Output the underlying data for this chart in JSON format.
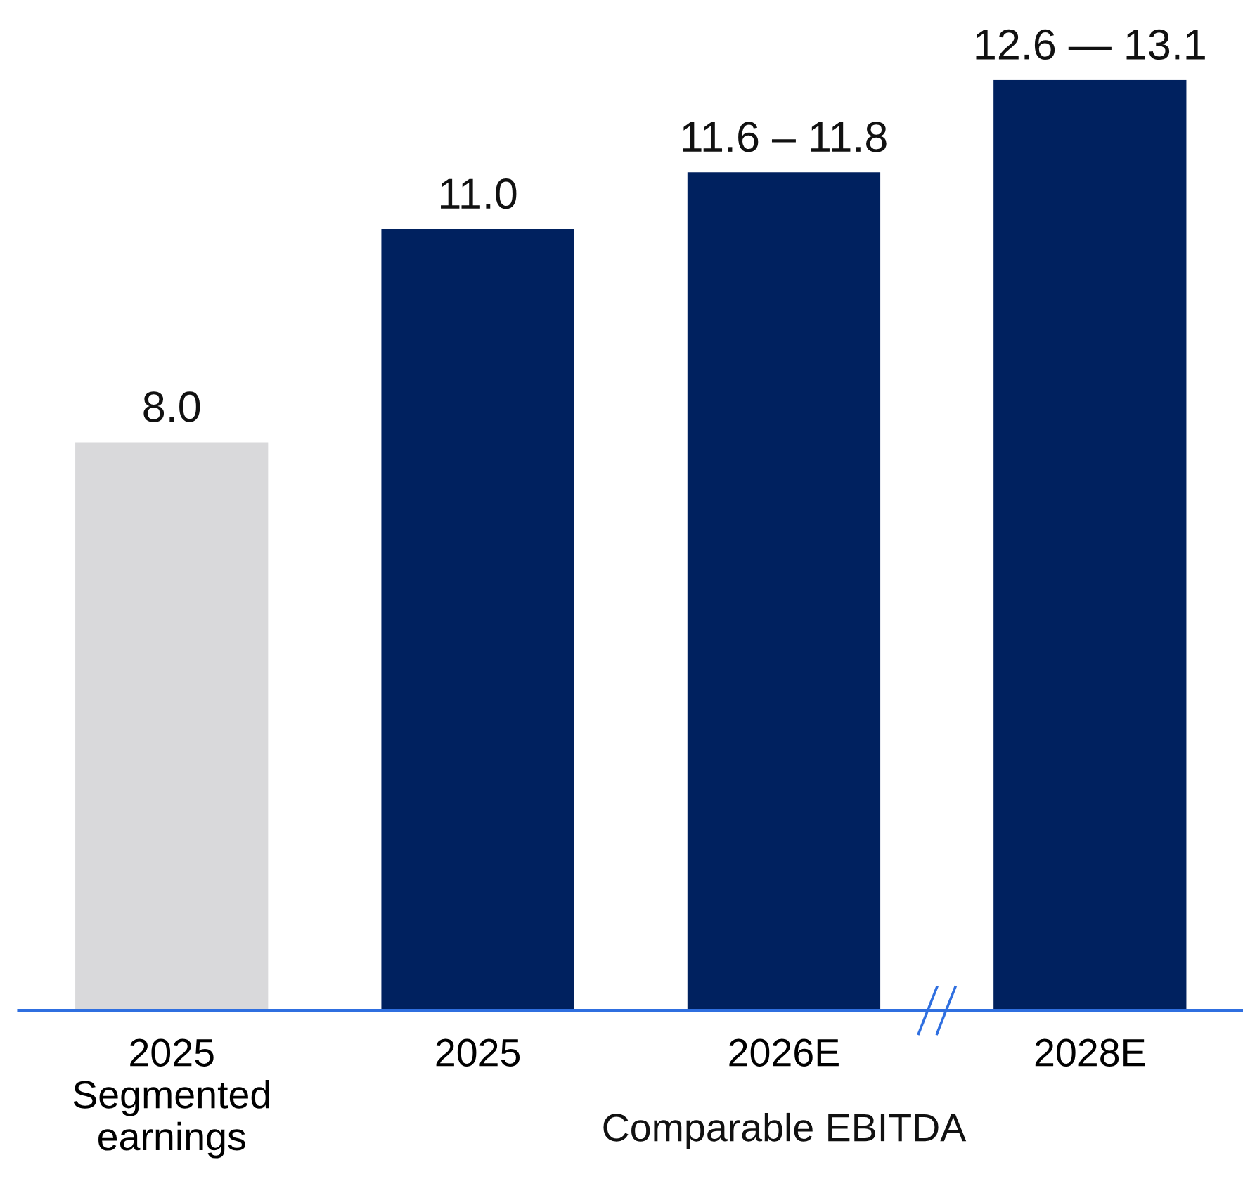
{
  "chart_data": {
    "type": "bar",
    "categories": [
      "2025\nSegmented\nearnings",
      "2025",
      "2026E",
      "2028E"
    ],
    "values": [
      8.0,
      11.0,
      11.8,
      13.1
    ],
    "colors": [
      "#d9d9db",
      "#00215f",
      "#00215f",
      "#00215f"
    ],
    "value_labels": [
      "8.0",
      "11.0",
      null,
      null
    ],
    "annotations": [
      "Comparable EBITDA",
      {
        "text": "11.6 – 11.8",
        "x": "2026E",
        "y": 11.8
      },
      {
        "text": "12.6 — 13.1",
        "x": "2028E",
        "y": 13.1
      }
    ],
    "grid": false,
    "legend": false
  }
}
